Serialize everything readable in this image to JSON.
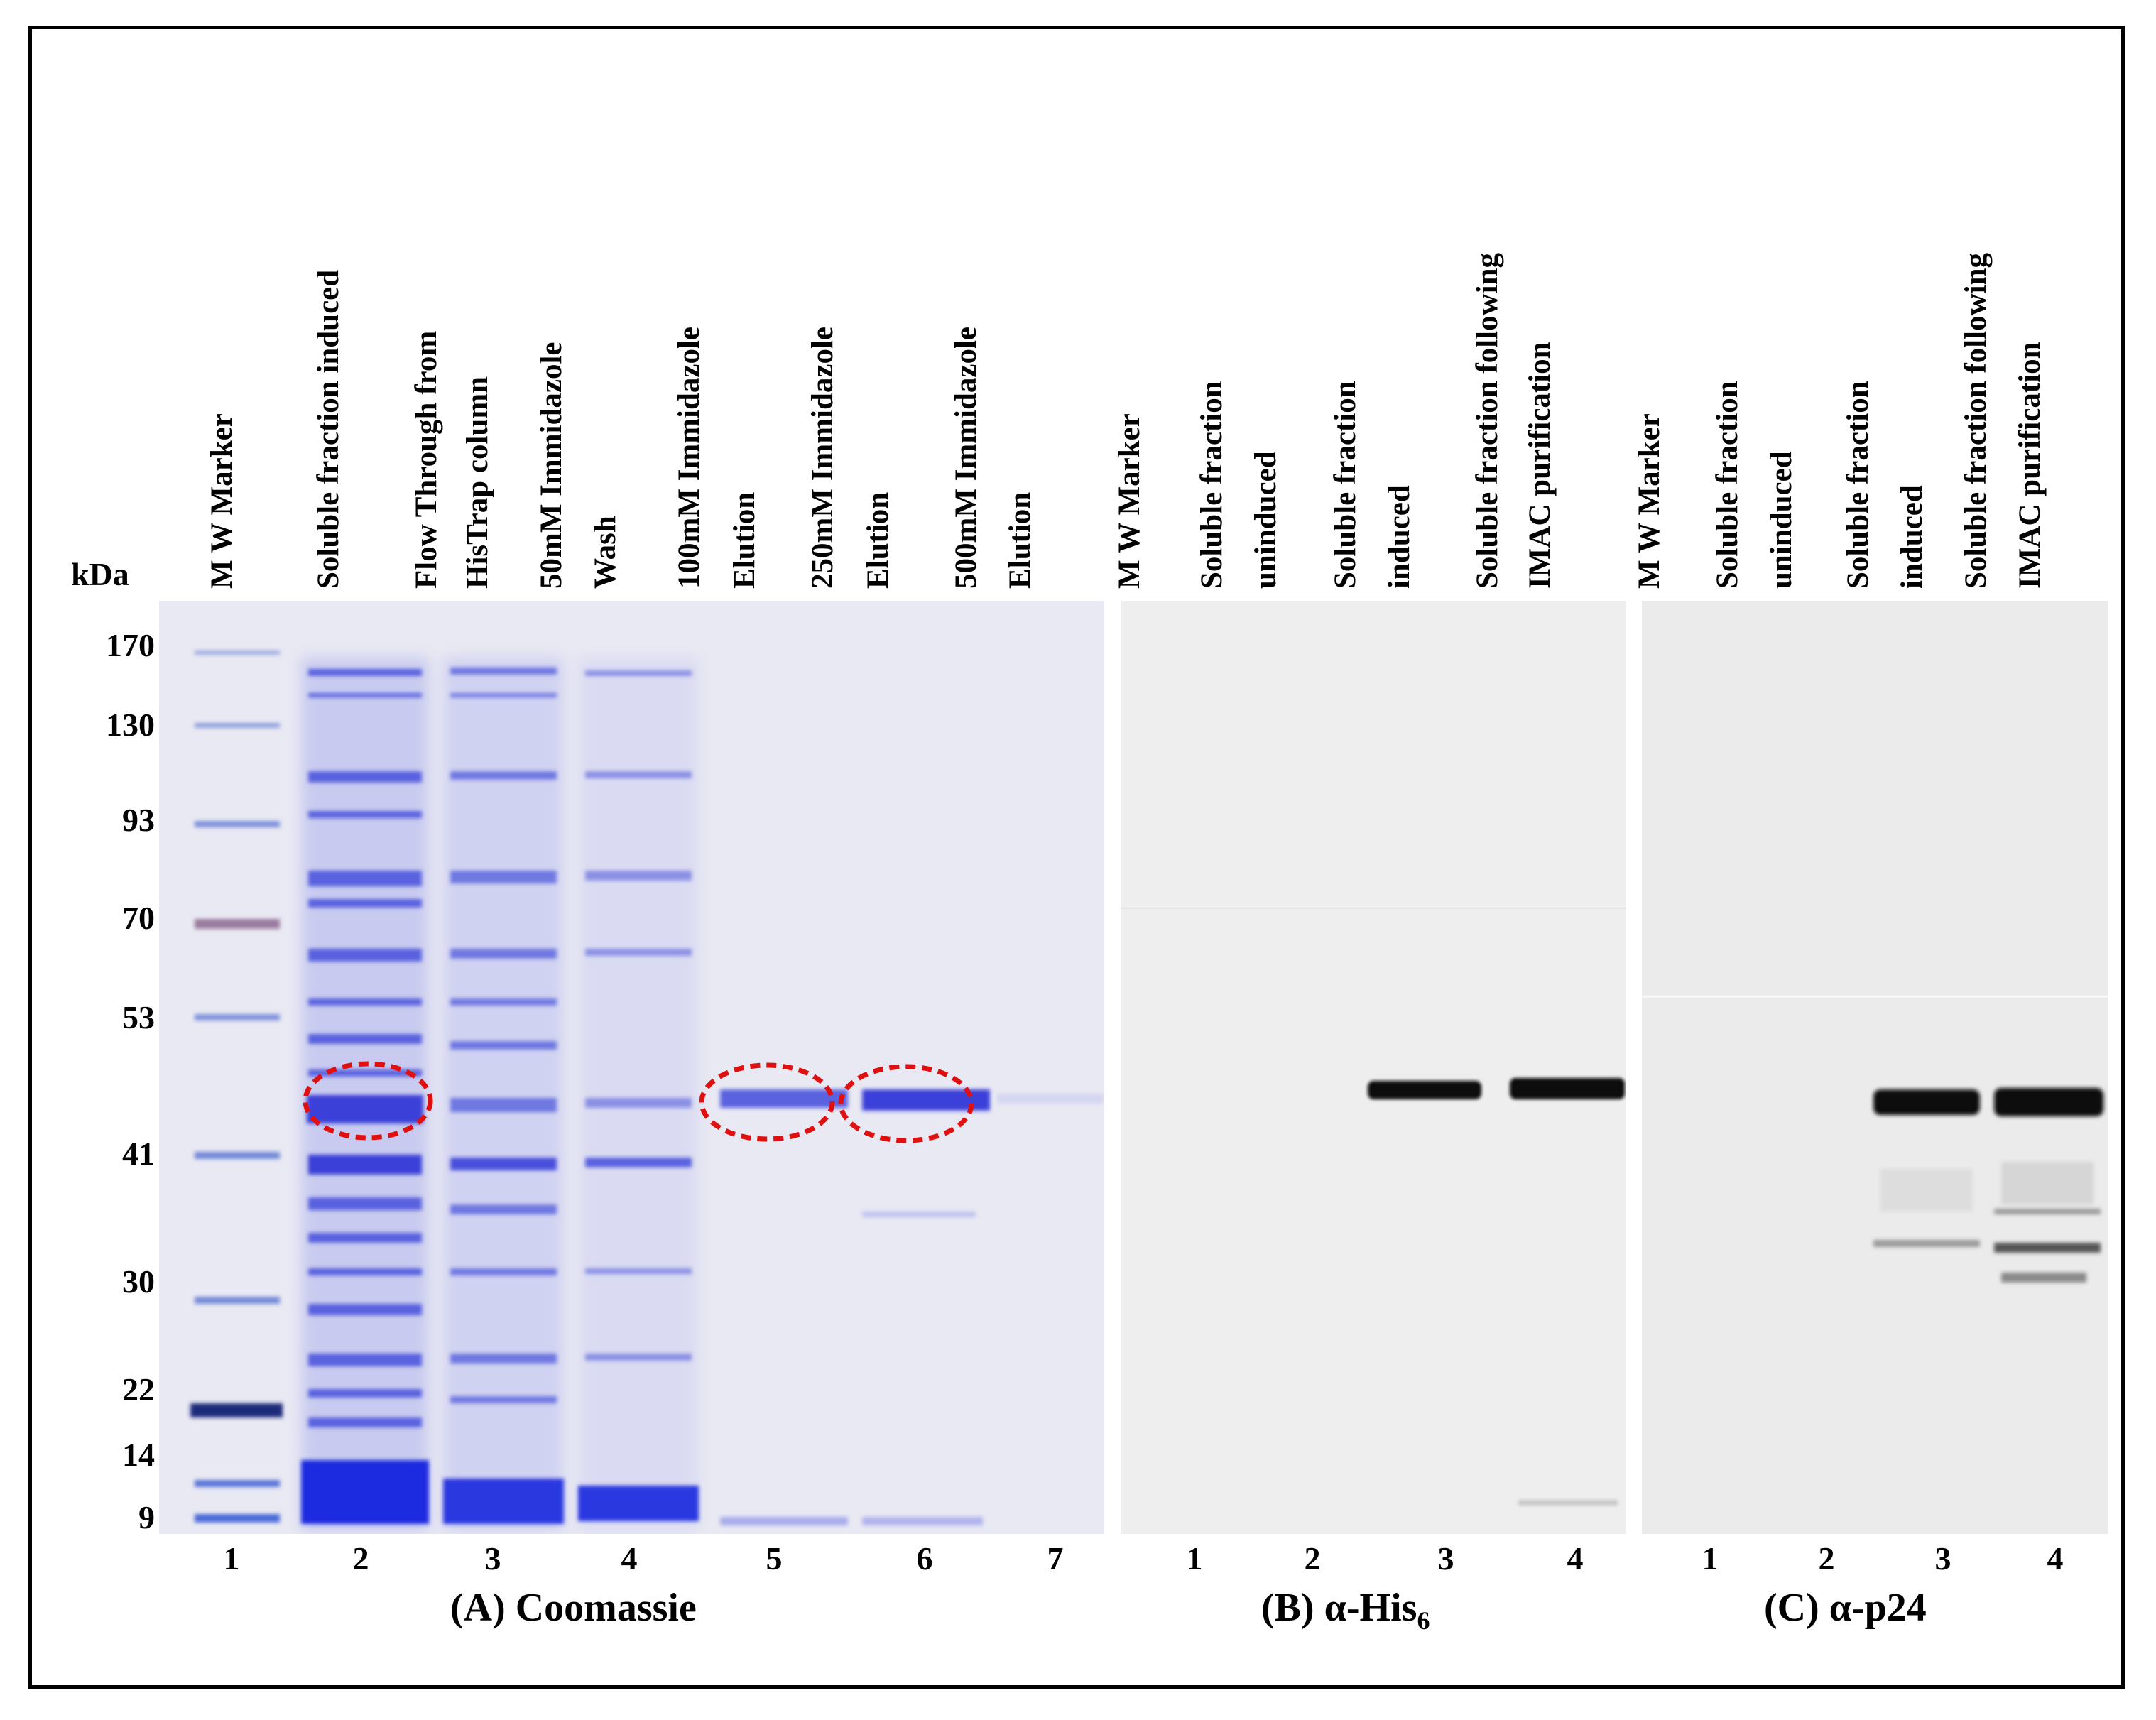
{
  "kda_label": "kDa",
  "mw_markers": [
    "170",
    "130",
    "93",
    "70",
    "53",
    "41",
    "30",
    "22",
    "14",
    "9"
  ],
  "panelA": {
    "title": "(A) Coomassie",
    "lane_numbers": [
      "1",
      "2",
      "3",
      "4",
      "5",
      "6",
      "7"
    ],
    "lane_labels": [
      [
        "M W Marker"
      ],
      [
        "Soluble fraction induced"
      ],
      [
        "Flow Through from",
        "HisTrap column"
      ],
      [
        "50mM Immidazole",
        "Wash"
      ],
      [
        "100mM Immidazole",
        "Elution"
      ],
      [
        "250mM Immidazole",
        "Elution"
      ],
      [
        "500mM Immidazole",
        "Elution"
      ]
    ]
  },
  "panelB": {
    "title_prefix": "(B) α-His",
    "title_sub": "6",
    "lane_numbers": [
      "1",
      "2",
      "3",
      "4"
    ],
    "lane_labels": [
      [
        "M W Marker"
      ],
      [
        "Soluble fraction",
        "uninduced"
      ],
      [
        "Soluble fraction",
        "induced"
      ],
      [
        "Soluble fraction following",
        "IMAC purification"
      ]
    ]
  },
  "panelC": {
    "title": "(C) α-p24",
    "lane_numbers": [
      "1",
      "2",
      "3",
      "4"
    ],
    "lane_labels": [
      [
        "M W Marker"
      ],
      [
        "Soluble fraction",
        "uninduced"
      ],
      [
        "Soluble fraction",
        "induced"
      ],
      [
        "Soluble fraction following",
        "IMAC purification"
      ]
    ]
  },
  "colors": {
    "coomassie": "#3a3fd8",
    "highlight_ellipse": "#e01010",
    "western_band": "#0a0a0a"
  }
}
